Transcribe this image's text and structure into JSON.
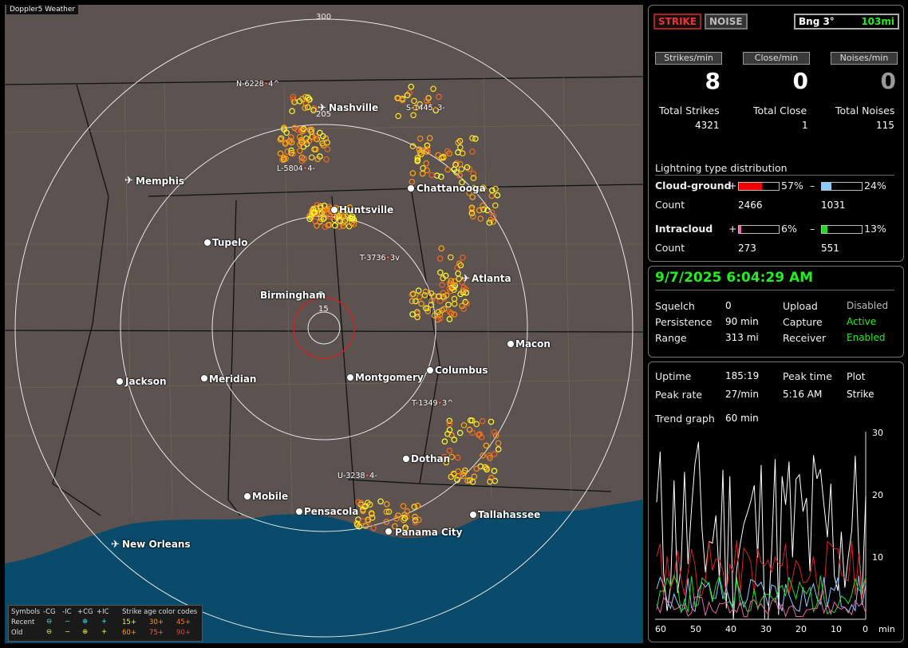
{
  "map": {
    "window_title": "Doppler5 Weather",
    "ring_labels": [
      "300",
      "205",
      "15"
    ],
    "cities": [
      "Nashville",
      "Memphis",
      "Chattanooga",
      "Huntsville",
      "Tupelo",
      "Birmingham",
      "Atlanta",
      "Macon",
      "Jackson",
      "Meridian",
      "Montgomery",
      "Columbus",
      "Dothan",
      "Mobile",
      "Pensacola",
      "Tallahassee",
      "Panama City",
      "New Orleans"
    ],
    "tracks": [
      "N-6228",
      "S-1445",
      "L-5804",
      "T-3736",
      "T-1349",
      "U-3238"
    ],
    "track_suffixes": [
      "4^",
      "3-",
      "4-",
      "3v",
      "3^",
      "4-"
    ],
    "legend": {
      "symbols": "Symbols",
      "cols": [
        "-CG",
        "-IC",
        "+CG",
        "+IC"
      ],
      "recent": "Recent",
      "old": "Old",
      "age_title": "Strike age color codes",
      "recent_ages": [
        "15+",
        "30+",
        "45+"
      ],
      "old_ages": [
        "60+",
        "75+",
        "90+"
      ]
    }
  },
  "header": {
    "strike_label": "STRIKE",
    "noise_label": "NOISE",
    "bearing": "Bng 3°",
    "distance": "103mi"
  },
  "rates": {
    "strikes_label": "Strikes/min",
    "strikes_value": "8",
    "close_label": "Close/min",
    "close_value": "0",
    "noises_label": "Noises/min",
    "noises_value": "0",
    "total_strikes_label": "Total Strikes",
    "total_strikes": "4321",
    "total_close_label": "Total Close",
    "total_close": "1",
    "total_noises_label": "Total Noises",
    "total_noises": "115"
  },
  "distribution": {
    "title": "Lightning type distribution",
    "cg_label": "Cloud-ground",
    "ic_label": "Intracloud",
    "count_label": "Count",
    "plus": "+",
    "minus": "–",
    "cg_pos_pct": "57%",
    "cg_pos_frac": 0.57,
    "cg_pos_count": "2466",
    "cg_neg_pct": "24%",
    "cg_neg_frac": 0.24,
    "cg_neg_count": "1031",
    "ic_pos_pct": "6%",
    "ic_pos_frac": 0.06,
    "ic_pos_count": "273",
    "ic_neg_pct": "13%",
    "ic_neg_frac": 0.13,
    "ic_neg_count": "551"
  },
  "status": {
    "datetime": "9/7/2025 6:04:29 AM",
    "squelch_label": "Squelch",
    "squelch": "0",
    "persistence_label": "Persistence",
    "persistence": "90 min",
    "range_label": "Range",
    "range": "313 mi",
    "upload_label": "Upload",
    "upload": "Disabled",
    "capture_label": "Capture",
    "capture": "Active",
    "receiver_label": "Receiver",
    "receiver": "Enabled"
  },
  "trend": {
    "uptime_label": "Uptime",
    "uptime": "185:19",
    "peak_time_label": "Peak time",
    "peak_time": "5:16 AM",
    "plot_label": "Plot",
    "plot": "Strike",
    "peak_rate_label": "Peak rate",
    "peak_rate": "27/min",
    "trend_label": "Trend graph",
    "trend_window": "60 min",
    "x_ticks": [
      "60",
      "50",
      "40",
      "30",
      "20",
      "10",
      "0"
    ],
    "x_unit": "min",
    "y_ticks": [
      "30",
      "20",
      "10"
    ]
  },
  "colors": {
    "accent_green": "#22ee22",
    "strike_red": "#dd2222"
  }
}
